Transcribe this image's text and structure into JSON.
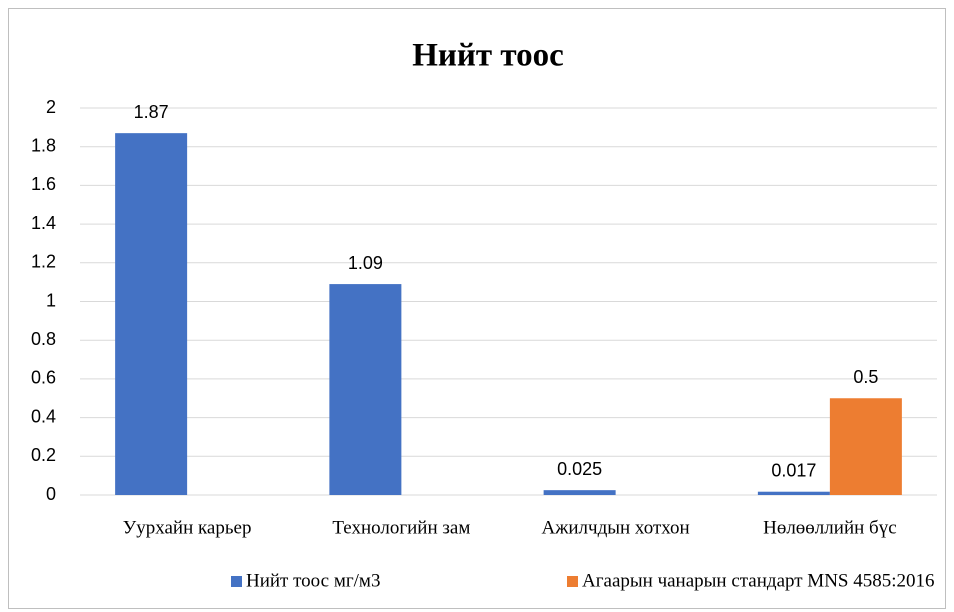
{
  "chart_data": {
    "type": "bar",
    "title": "Нийт тоос",
    "categories": [
      "Уурхайн карьер",
      "Технологийн зам",
      "Ажилчдын хотхон",
      "Нөлөөллийн бүс"
    ],
    "series": [
      {
        "name": "Нийт тоос мг/м3",
        "color": "#4472c4",
        "values": [
          1.87,
          1.09,
          0.025,
          0.017
        ]
      },
      {
        "name": "Агаарын чанарын стандарт MNS 4585:2016",
        "color": "#ed7d31",
        "values": [
          null,
          null,
          null,
          0.5
        ]
      }
    ],
    "ylim": [
      0,
      2
    ],
    "yticks": [
      0,
      0.2,
      0.4,
      0.6,
      0.8,
      1,
      1.2,
      1.4,
      1.6,
      1.8,
      2
    ],
    "grid": true,
    "legend": "bottom"
  }
}
